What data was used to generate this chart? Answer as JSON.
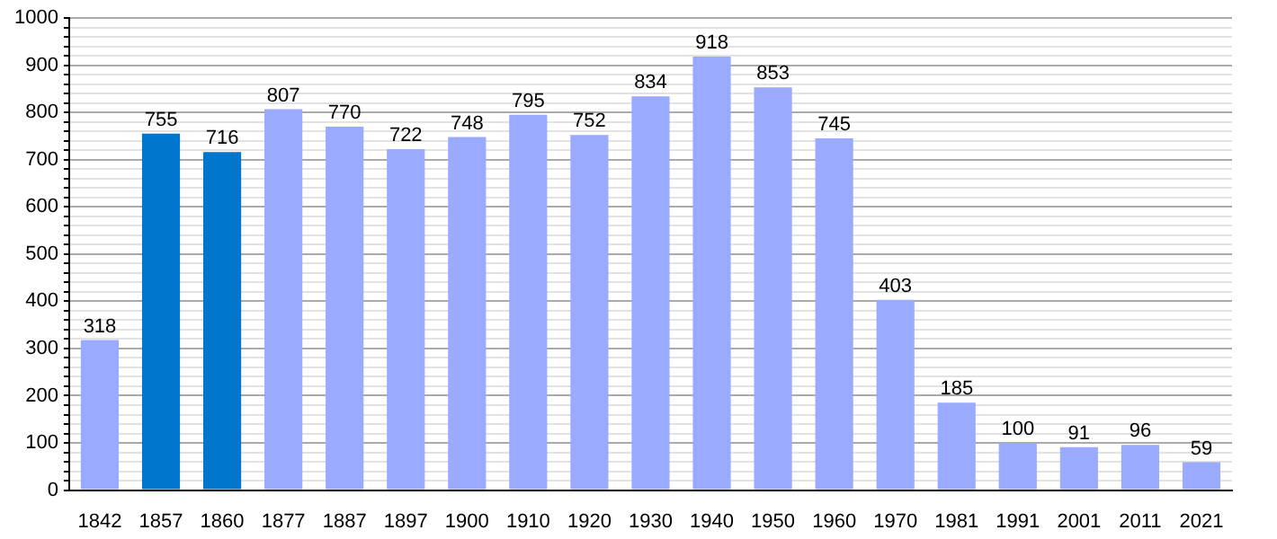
{
  "chart_data": {
    "type": "bar",
    "categories": [
      "1842",
      "1857",
      "1860",
      "1877",
      "1887",
      "1897",
      "1900",
      "1910",
      "1920",
      "1930",
      "1940",
      "1950",
      "1960",
      "1970",
      "1981",
      "1991",
      "2001",
      "2011",
      "2021"
    ],
    "values": [
      318,
      755,
      716,
      807,
      770,
      722,
      748,
      795,
      752,
      834,
      918,
      853,
      745,
      403,
      185,
      100,
      91,
      96,
      59
    ],
    "colors": [
      "#99aaff",
      "#0077cc",
      "#0077cc",
      "#99aaff",
      "#99aaff",
      "#99aaff",
      "#99aaff",
      "#99aaff",
      "#99aaff",
      "#99aaff",
      "#99aaff",
      "#99aaff",
      "#99aaff",
      "#99aaff",
      "#99aaff",
      "#99aaff",
      "#99aaff",
      "#99aaff",
      "#99aaff"
    ],
    "ylim": [
      0,
      1000
    ],
    "yticks": [
      0,
      {
        "value": 20,
        "label": null
      },
      {
        "value": 40,
        "label": null
      },
      {
        "value": 60,
        "label": null
      },
      {
        "value": 80,
        "label": null
      },
      100,
      {
        "value": 120,
        "label": null
      },
      {
        "value": 140,
        "label": null
      },
      {
        "value": 160,
        "label": null
      },
      {
        "value": 180,
        "label": null
      },
      200,
      {
        "value": 220,
        "label": null
      },
      {
        "value": 240,
        "label": null
      },
      {
        "value": 260,
        "label": null
      },
      {
        "value": 280,
        "label": null
      },
      300,
      {
        "value": 320,
        "label": null
      },
      {
        "value": 340,
        "label": null
      },
      {
        "value": 360,
        "label": null
      },
      {
        "value": 380,
        "label": null
      },
      400,
      {
        "value": 420,
        "label": null
      },
      {
        "value": 440,
        "label": null
      },
      {
        "value": 460,
        "label": null
      },
      {
        "value": 480,
        "label": null
      },
      500,
      {
        "value": 520,
        "label": null
      },
      {
        "value": 540,
        "label": null
      },
      {
        "value": 560,
        "label": null
      },
      {
        "value": 580,
        "label": null
      },
      600,
      {
        "value": 620,
        "label": null
      },
      {
        "value": 640,
        "label": null
      },
      {
        "value": 660,
        "label": null
      },
      {
        "value": 680,
        "label": null
      },
      700,
      {
        "value": 720,
        "label": null
      },
      {
        "value": 740,
        "label": null
      },
      {
        "value": 760,
        "label": null
      },
      {
        "value": 780,
        "label": null
      },
      800,
      {
        "value": 820,
        "label": null
      },
      {
        "value": 840,
        "label": null
      },
      {
        "value": 860,
        "label": null
      },
      {
        "value": 880,
        "label": null
      },
      900,
      {
        "value": 920,
        "label": null
      },
      {
        "value": 940,
        "label": null
      },
      {
        "value": 960,
        "label": null
      },
      {
        "value": 980,
        "label": null
      },
      1000
    ],
    "grid": "y",
    "data_labels": true,
    "legend": false
  }
}
